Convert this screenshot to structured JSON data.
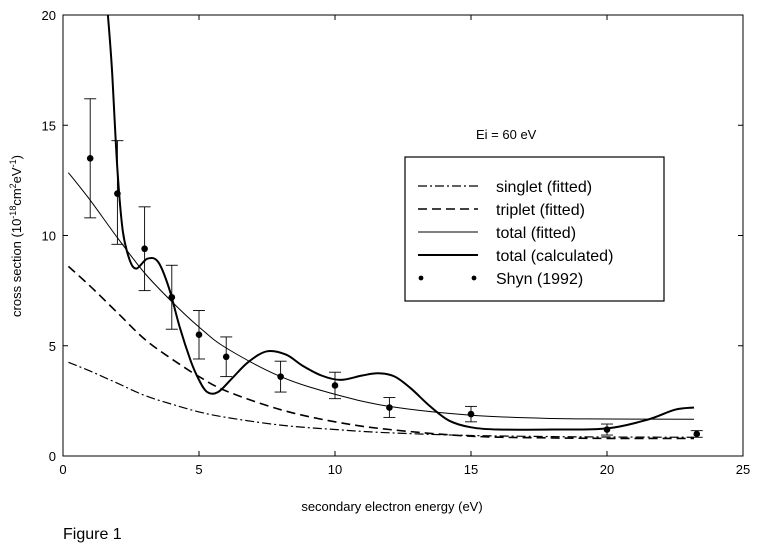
{
  "chart_data": {
    "type": "line",
    "title": "",
    "annotation": "Ei = 60 eV",
    "xlabel": "secondary electron energy (eV)",
    "ylabel": {
      "prefix": "cross section  (10",
      "exp1": "-18",
      "mid1": "cm",
      "exp2": "2",
      "mid2": "eV",
      "exp3": "-1",
      "suffix": ")"
    },
    "xlim": [
      0,
      25
    ],
    "ylim": [
      0,
      20
    ],
    "xticks": [
      0,
      5,
      10,
      15,
      20,
      25
    ],
    "yticks": [
      0,
      5,
      10,
      15,
      20
    ],
    "grid": false,
    "legend_position": "right",
    "series": [
      {
        "name": "singlet (fitted)",
        "style": "dashdot",
        "x": [
          0.2,
          1,
          2,
          3,
          4,
          5,
          6,
          8,
          10,
          12,
          15,
          18,
          20,
          23.2
        ],
        "y": [
          4.25,
          3.85,
          3.3,
          2.75,
          2.35,
          2.0,
          1.75,
          1.4,
          1.2,
          1.05,
          0.93,
          0.88,
          0.86,
          0.85
        ]
      },
      {
        "name": "triplet (fitted)",
        "style": "dashed",
        "x": [
          0.2,
          1,
          2,
          3,
          4,
          5,
          6,
          8,
          10,
          12,
          15,
          18,
          20,
          23.2
        ],
        "y": [
          8.6,
          7.7,
          6.5,
          5.3,
          4.4,
          3.6,
          2.95,
          2.1,
          1.55,
          1.2,
          0.9,
          0.82,
          0.8,
          0.8
        ]
      },
      {
        "name": "total (fitted)",
        "style": "thin",
        "x": [
          0.2,
          1,
          2,
          3,
          4,
          5,
          6,
          8,
          10,
          12,
          15,
          18,
          20,
          23.2
        ],
        "y": [
          12.85,
          11.6,
          9.9,
          8.3,
          7.0,
          5.85,
          4.9,
          3.6,
          2.8,
          2.25,
          1.85,
          1.7,
          1.68,
          1.67
        ]
      },
      {
        "name": "total (calculated)",
        "style": "thick",
        "x": [
          1.65,
          1.8,
          2.0,
          2.2,
          2.45,
          2.7,
          3.1,
          3.5,
          3.9,
          4.3,
          4.7,
          5.0,
          5.3,
          5.7,
          6.2,
          6.8,
          7.5,
          8.2,
          8.8,
          9.5,
          10.2,
          11.0,
          11.6,
          12.2,
          12.8,
          13.5,
          14.2,
          15.0,
          16.0,
          18.0,
          20.0,
          21.5,
          22.5,
          23.2
        ],
        "y": [
          20.0,
          17.5,
          13.0,
          10.2,
          8.9,
          8.5,
          8.95,
          8.8,
          7.6,
          5.8,
          4.3,
          3.45,
          2.9,
          2.9,
          3.5,
          4.25,
          4.75,
          4.6,
          4.1,
          3.65,
          3.45,
          3.65,
          3.75,
          3.6,
          3.05,
          2.25,
          1.6,
          1.3,
          1.2,
          1.2,
          1.25,
          1.65,
          2.1,
          2.2
        ]
      },
      {
        "name": "Shyn (1992)",
        "style": "points",
        "x": [
          1,
          2,
          3,
          4,
          5,
          6,
          8,
          10,
          12,
          15,
          20,
          23.3
        ],
        "y": [
          13.5,
          11.9,
          9.4,
          7.2,
          5.5,
          4.5,
          3.6,
          3.2,
          2.2,
          1.9,
          1.2,
          1.0
        ],
        "err_low": [
          10.8,
          9.6,
          7.5,
          5.75,
          4.4,
          3.6,
          2.9,
          2.6,
          1.75,
          1.55,
          0.95,
          0.85
        ],
        "err_high": [
          16.2,
          14.3,
          11.3,
          8.65,
          6.6,
          5.4,
          4.3,
          3.8,
          2.65,
          2.25,
          1.45,
          1.15
        ]
      }
    ]
  },
  "caption": "Figure 1",
  "colors": {
    "ink": "#000000",
    "background": "#ffffff"
  }
}
